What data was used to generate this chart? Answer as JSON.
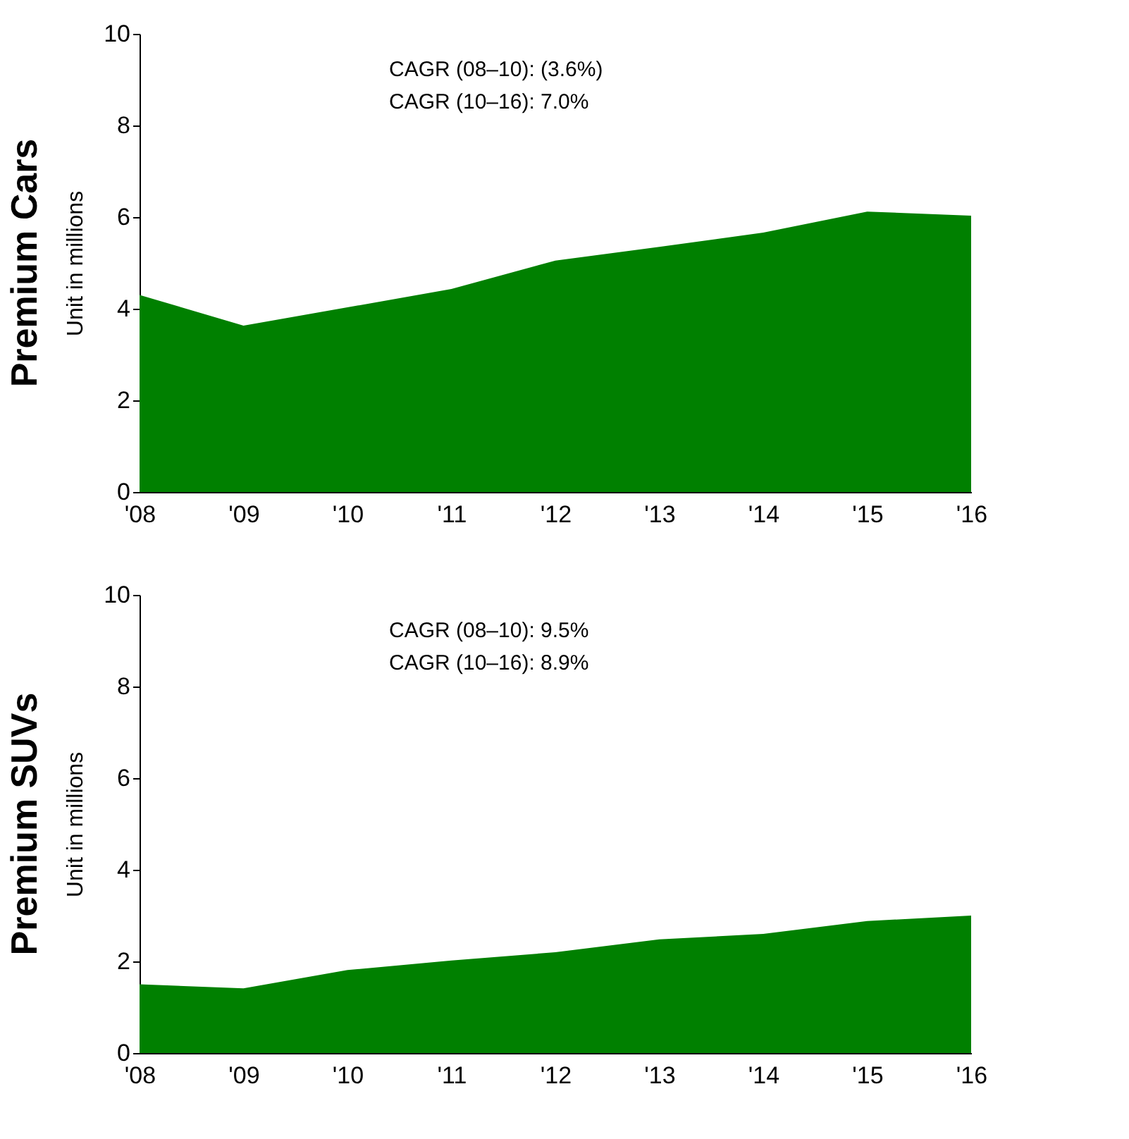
{
  "chart_data": [
    {
      "type": "area",
      "title": "Premium Cars",
      "ylabel": "Unit in millions",
      "categories": [
        "'08",
        "'09",
        "'10",
        "'11",
        "'12",
        "'13",
        "'14",
        "'15",
        "'16"
      ],
      "series": [
        {
          "color": "#008000",
          "values": [
            4.3,
            3.63,
            4.03,
            4.43,
            5.05,
            5.35,
            5.66,
            6.12,
            6.03
          ]
        }
      ],
      "ylim": [
        0,
        10
      ],
      "yticks": [
        0,
        2,
        4,
        6,
        8,
        10
      ],
      "grid": false,
      "annotations": [
        "CAGR (08–10): (3.6%)",
        "CAGR (10–16):  7.0%"
      ]
    },
    {
      "type": "area",
      "title": "Premium SUVs",
      "ylabel": "Unit in millions",
      "categories": [
        "'08",
        "'09",
        "'10",
        "'11",
        "'12",
        "'13",
        "'14",
        "'15",
        "'16"
      ],
      "series": [
        {
          "color": "#008000",
          "values": [
            1.5,
            1.41,
            1.81,
            2.02,
            2.2,
            2.48,
            2.6,
            2.88,
            3.0
          ]
        }
      ],
      "ylim": [
        0,
        10
      ],
      "yticks": [
        0,
        2,
        4,
        6,
        8,
        10
      ],
      "grid": false,
      "annotations": [
        "CAGR (08–10): 9.5%",
        "CAGR (10–16): 8.9%"
      ]
    }
  ]
}
